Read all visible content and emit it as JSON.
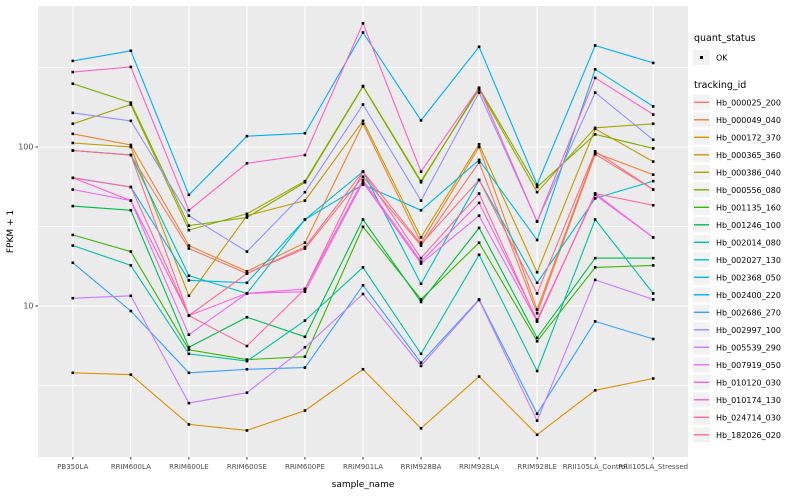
{
  "chart_data": {
    "type": "line",
    "title": "",
    "xlabel": "sample_name",
    "ylabel": "FPKM + 1",
    "y_scale": "log10",
    "y_major_ticks": [
      10,
      100
    ],
    "y_minor_ticks": [
      3.16,
      31.6,
      316
    ],
    "ylim": [
      1.12,
      771
    ],
    "grid": true,
    "legend_position": "right",
    "panel_bg": "#EBEBEB",
    "grid_color": "#FFFFFF",
    "point_color": "#000000",
    "tick_label_color": "#4D4D4D",
    "categories": [
      "PB350LA",
      "RRIM600LA",
      "RRIM600LE",
      "RRIM600SE",
      "RRIM600PE",
      "RRIM901LA",
      "RRIM928BA",
      "RRIM928LA",
      "RRIM928LE",
      "RRII105LA_Control",
      "RRII105LA_Stressed"
    ],
    "series": [
      {
        "name": "Hb_000025_200",
        "color": "#F8766D",
        "values": [
          95,
          89,
          23,
          16,
          23,
          65,
          24,
          80,
          9,
          90,
          54
        ]
      },
      {
        "name": "Hb_000049_040",
        "color": "#EA8331",
        "values": [
          121,
          103,
          24,
          16.5,
          25,
          140,
          25,
          100,
          9.5,
          92,
          67
        ]
      },
      {
        "name": "Hb_000172_370",
        "color": "#D89000",
        "values": [
          3.8,
          3.7,
          1.8,
          1.65,
          2.2,
          4.0,
          1.7,
          3.6,
          1.55,
          2.95,
          3.5
        ]
      },
      {
        "name": "Hb_000365_360",
        "color": "#C09B00",
        "values": [
          106,
          100,
          11.6,
          37,
          46,
          146,
          27,
          104,
          16.3,
          130,
          81
        ]
      },
      {
        "name": "Hb_000386_040",
        "color": "#A3A500",
        "values": [
          140,
          185,
          30,
          38,
          61,
          242,
          61,
          230,
          52,
          132,
          140
        ]
      },
      {
        "name": "Hb_000556_080",
        "color": "#7CAE00",
        "values": [
          250,
          190,
          32,
          36,
          60,
          240,
          60,
          235,
          56,
          120,
          98
        ]
      },
      {
        "name": "Hb_001135_160",
        "color": "#39B600",
        "values": [
          28,
          22,
          5.3,
          4.6,
          4.8,
          31.5,
          11,
          25,
          6,
          17.5,
          18
        ]
      },
      {
        "name": "Hb_001246_100",
        "color": "#00BB4E",
        "values": [
          42.5,
          40,
          5.5,
          8.5,
          6.4,
          35,
          10.6,
          31,
          6.3,
          20,
          20
        ]
      },
      {
        "name": "Hb_002014_080",
        "color": "#00C1A3",
        "values": [
          24,
          18,
          5.0,
          4.5,
          8.1,
          17.5,
          5,
          21,
          3.9,
          35,
          12
        ]
      },
      {
        "name": "Hb_002027_130",
        "color": "#00BFC4",
        "values": [
          95,
          89,
          15.5,
          12,
          35,
          70,
          13.8,
          62,
          14,
          47.5,
          61
        ]
      },
      {
        "name": "Hb_002368_050",
        "color": "#00BAE0",
        "values": [
          64,
          56,
          14.5,
          14,
          35,
          58,
          40,
          83,
          26,
          308,
          180
        ]
      },
      {
        "name": "Hb_002400_220",
        "color": "#00B0F6",
        "values": [
          348,
          403,
          50,
          117,
          122,
          525,
          147,
          427,
          58,
          435,
          338
        ]
      },
      {
        "name": "Hb_002686_270",
        "color": "#35A2FF",
        "values": [
          18.7,
          9.3,
          3.8,
          4.0,
          4.1,
          13.5,
          4.4,
          11,
          2.1,
          8,
          6.2
        ]
      },
      {
        "name": "Hb_002997_100",
        "color": "#9590FF",
        "values": [
          164,
          146,
          37,
          22,
          52,
          185,
          46,
          220,
          34,
          220,
          111
        ]
      },
      {
        "name": "Hb_005539_290",
        "color": "#C77CFF",
        "values": [
          11.2,
          11.6,
          2.45,
          2.85,
          5.5,
          11.9,
          4.2,
          10.9,
          1.9,
          14.6,
          11
        ]
      },
      {
        "name": "Hb_007919_050",
        "color": "#E76BF3",
        "values": [
          54,
          46,
          6.6,
          12,
          12.3,
          60,
          18.5,
          37,
          8,
          51,
          27
        ]
      },
      {
        "name": "Hb_010120_030",
        "color": "#FA62DB",
        "values": [
          64,
          46,
          8.7,
          12,
          12.8,
          62,
          19,
          44.5,
          8.2,
          50,
          27
        ]
      },
      {
        "name": "Hb_010174_130",
        "color": "#FF61C3",
        "values": [
          296,
          319,
          40,
          79,
          89,
          600,
          70,
          236,
          34,
          272,
          160
        ]
      },
      {
        "name": "Hb_024714_030",
        "color": "#FF67A4",
        "values": [
          64,
          56,
          8.7,
          5.6,
          12.8,
          70,
          20,
          51,
          8,
          51,
          43
        ]
      },
      {
        "name": "Hb_182026_020",
        "color": "#FF6C91",
        "values": [
          95,
          89,
          8.7,
          16,
          23.5,
          70,
          24.5,
          62,
          12,
          94,
          54
        ]
      }
    ]
  },
  "legend": {
    "quant_status_title": "quant_status",
    "quant_status_items": [
      {
        "label": "OK"
      }
    ],
    "tracking_id_title": "tracking_id",
    "key_bg": "#F2F2F2"
  }
}
